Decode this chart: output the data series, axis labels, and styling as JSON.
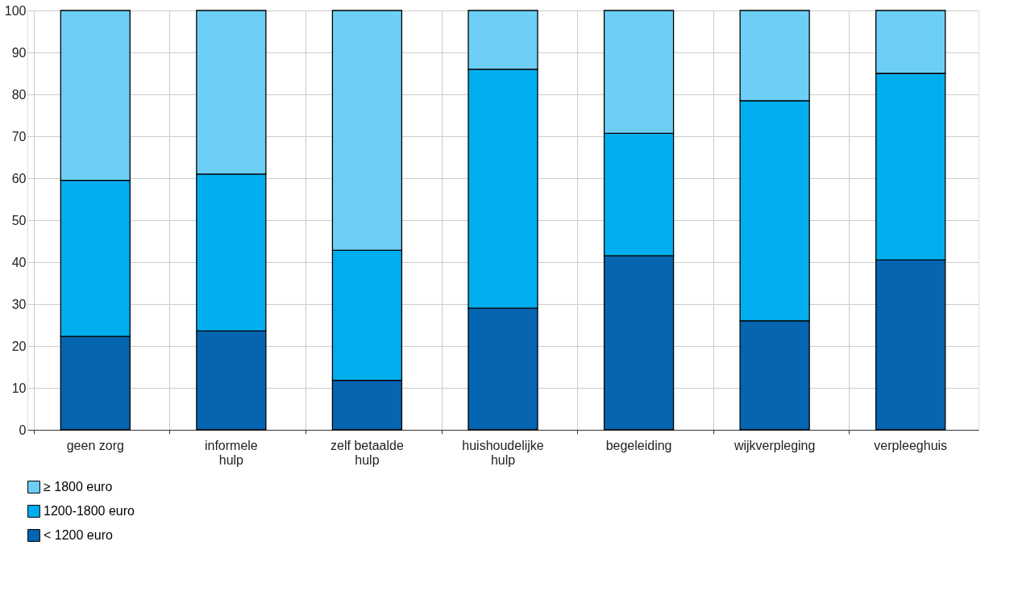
{
  "chart_data": {
    "type": "bar",
    "stacked": true,
    "categories": [
      "geen zorg",
      "informele hulp",
      "zelf betaalde hulp",
      "huishoudelijke hulp",
      "begeleiding",
      "wijkverpleging",
      "verpleeghuis"
    ],
    "series": [
      {
        "name": "< 1200 euro",
        "color": "#0565b0",
        "values": [
          22.3,
          23.6,
          11.8,
          29,
          41.5,
          26,
          40.5
        ]
      },
      {
        "name": "1200-1800 euro",
        "color": "#00aeef",
        "values": [
          37.2,
          37.4,
          31,
          57,
          29.2,
          52.5,
          44.5
        ]
      },
      {
        "name": "≥ 1800 euro",
        "color": "#6dcff6",
        "values": [
          40.5,
          39,
          57.2,
          14,
          29.3,
          21.5,
          15
        ]
      }
    ],
    "ylim": [
      0,
      100
    ],
    "yticks": [
      0,
      10,
      20,
      30,
      40,
      50,
      60,
      70,
      80,
      90,
      100
    ],
    "grid": true,
    "legend": "bottom left"
  }
}
